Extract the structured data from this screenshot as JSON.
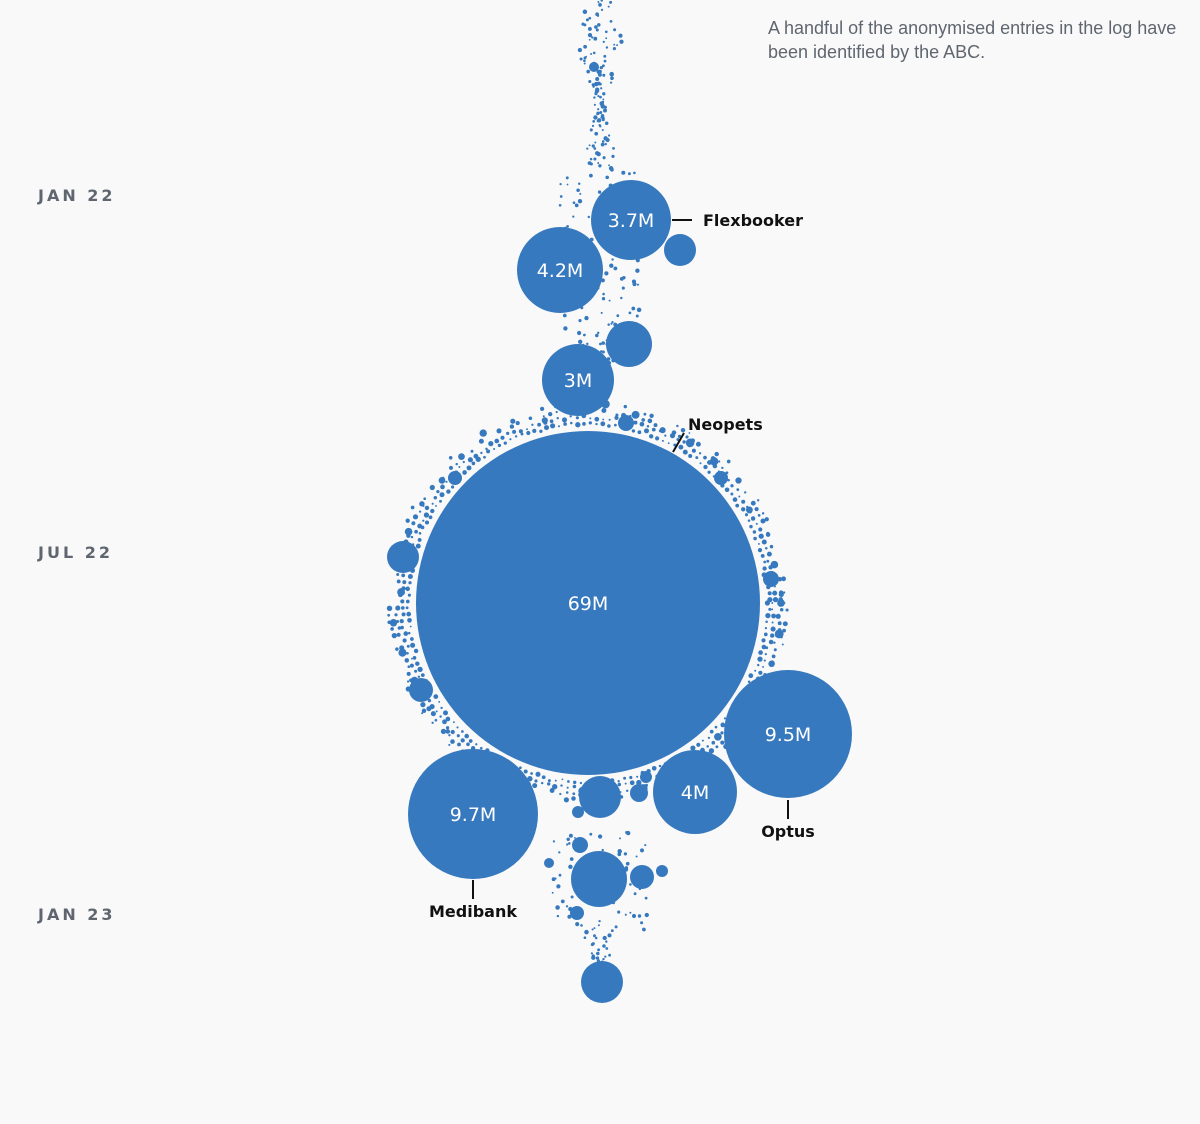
{
  "chart_data": {
    "type": "bubble",
    "title": "",
    "note": "A handful of the anonymised entries in the log have been identified by the ABC.",
    "time_axis": [
      "JAN 22",
      "JUL 22",
      "JAN 23"
    ],
    "accent_color": "#3779be",
    "labeled_bubbles": [
      {
        "id": "flexbooker",
        "value_label": "3.7M",
        "records_millions": 3.7,
        "name": "Flexbooker",
        "approx_date": "2022-01"
      },
      {
        "id": "b42",
        "value_label": "4.2M",
        "records_millions": 4.2,
        "name": "",
        "approx_date": "2022-02"
      },
      {
        "id": "b3",
        "value_label": "3M",
        "records_millions": 3.0,
        "name": "",
        "approx_date": "2022-04"
      },
      {
        "id": "neopets",
        "value_label": "69M",
        "records_millions": 69,
        "name": "Neopets",
        "approx_date": "2022-07"
      },
      {
        "id": "optus",
        "value_label": "9.5M",
        "records_millions": 9.5,
        "name": "Optus",
        "approx_date": "2022-09"
      },
      {
        "id": "b4",
        "value_label": "4M",
        "records_millions": 4.0,
        "name": "",
        "approx_date": "2022-10"
      },
      {
        "id": "medibank",
        "value_label": "9.7M",
        "records_millions": 9.7,
        "name": "Medibank",
        "approx_date": "2022-10"
      }
    ]
  }
}
